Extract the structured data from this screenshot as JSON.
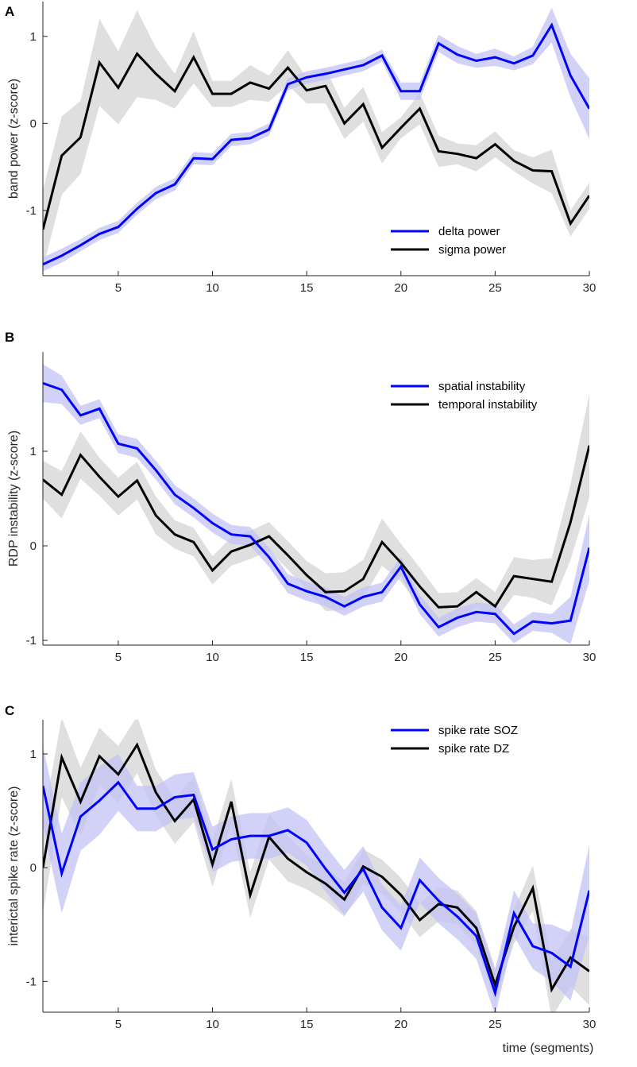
{
  "chart_data": [
    {
      "panel_label": "A",
      "type": "line",
      "title": "",
      "xlabel": "",
      "ylabel": "band power (z-score)",
      "xlim": [
        1,
        30
      ],
      "ylim": [
        -1.75,
        1.4
      ],
      "xticks": [
        5,
        10,
        15,
        20,
        25,
        30
      ],
      "yticks": [
        -1,
        0,
        1
      ],
      "grid": false,
      "legend_position": "bottom-right",
      "series": [
        {
          "name": "delta power",
          "color": "#0000ff",
          "band_color": "#c3c3f5",
          "x": [
            1,
            2,
            3,
            4,
            5,
            6,
            7,
            8,
            9,
            10,
            11,
            12,
            13,
            14,
            15,
            16,
            17,
            18,
            19,
            20,
            21,
            22,
            23,
            24,
            25,
            26,
            27,
            28,
            29,
            30
          ],
          "values": [
            -1.62,
            -1.52,
            -1.4,
            -1.27,
            -1.19,
            -0.98,
            -0.8,
            -0.7,
            -0.4,
            -0.41,
            -0.19,
            -0.17,
            -0.07,
            0.45,
            0.53,
            0.57,
            0.62,
            0.67,
            0.78,
            0.37,
            0.37,
            0.92,
            0.79,
            0.72,
            0.76,
            0.69,
            0.78,
            1.13,
            0.55,
            0.17
          ],
          "band": [
            0.08,
            0.08,
            0.07,
            0.07,
            0.07,
            0.07,
            0.07,
            0.07,
            0.07,
            0.07,
            0.07,
            0.07,
            0.07,
            0.07,
            0.07,
            0.07,
            0.07,
            0.07,
            0.07,
            0.1,
            0.1,
            0.1,
            0.1,
            0.08,
            0.1,
            0.08,
            0.1,
            0.2,
            0.25,
            0.35
          ]
        },
        {
          "name": "sigma power",
          "color": "#000000",
          "band_color": "#d9d9d9",
          "x": [
            1,
            2,
            3,
            4,
            5,
            6,
            7,
            8,
            9,
            10,
            11,
            12,
            13,
            14,
            15,
            16,
            17,
            18,
            19,
            20,
            21,
            22,
            23,
            24,
            25,
            26,
            27,
            28,
            29,
            30
          ],
          "values": [
            -1.22,
            -0.37,
            -0.16,
            0.7,
            0.41,
            0.8,
            0.57,
            0.37,
            0.76,
            0.34,
            0.34,
            0.47,
            0.4,
            0.64,
            0.38,
            0.43,
            0.0,
            0.22,
            -0.28,
            -0.05,
            0.17,
            -0.32,
            -0.35,
            -0.4,
            -0.24,
            -0.43,
            -0.54,
            -0.55,
            -1.15,
            -0.83
          ],
          "band": [
            0.45,
            0.45,
            0.42,
            0.5,
            0.42,
            0.5,
            0.3,
            0.2,
            0.3,
            0.15,
            0.15,
            0.2,
            0.15,
            0.2,
            0.15,
            0.2,
            0.18,
            0.2,
            0.18,
            0.12,
            0.18,
            0.18,
            0.12,
            0.15,
            0.15,
            0.12,
            0.15,
            0.25,
            0.15,
            0.15
          ]
        }
      ]
    },
    {
      "panel_label": "B",
      "type": "line",
      "title": "",
      "xlabel": "",
      "ylabel": "RDP instability (z-score)",
      "xlim": [
        1,
        30
      ],
      "ylim": [
        -1.05,
        2.05
      ],
      "xticks": [
        5,
        10,
        15,
        20,
        25,
        30
      ],
      "yticks": [
        -1,
        0,
        1
      ],
      "grid": false,
      "legend_position": "top-right",
      "series": [
        {
          "name": "spatial instability",
          "color": "#0000ff",
          "band_color": "#c3c3f5",
          "x": [
            1,
            2,
            3,
            4,
            5,
            6,
            7,
            8,
            9,
            10,
            11,
            12,
            13,
            14,
            15,
            16,
            17,
            18,
            19,
            20,
            21,
            22,
            23,
            24,
            25,
            26,
            27,
            28,
            29,
            30
          ],
          "values": [
            1.72,
            1.65,
            1.38,
            1.45,
            1.08,
            1.03,
            0.8,
            0.54,
            0.4,
            0.24,
            0.12,
            0.1,
            -0.12,
            -0.4,
            -0.48,
            -0.54,
            -0.64,
            -0.54,
            -0.49,
            -0.22,
            -0.62,
            -0.86,
            -0.76,
            -0.7,
            -0.72,
            -0.93,
            -0.8,
            -0.82,
            -0.79,
            -0.02
          ],
          "band": [
            0.2,
            0.15,
            0.1,
            0.1,
            0.1,
            0.1,
            0.1,
            0.1,
            0.1,
            0.1,
            0.1,
            0.1,
            0.1,
            0.1,
            0.1,
            0.1,
            0.1,
            0.1,
            0.1,
            0.1,
            0.1,
            0.1,
            0.1,
            0.1,
            0.1,
            0.1,
            0.1,
            0.1,
            0.25,
            0.35
          ]
        },
        {
          "name": "temporal instability",
          "color": "#000000",
          "band_color": "#d9d9d9",
          "x": [
            1,
            2,
            3,
            4,
            5,
            6,
            7,
            8,
            9,
            10,
            11,
            12,
            13,
            14,
            15,
            16,
            17,
            18,
            19,
            20,
            21,
            22,
            23,
            24,
            25,
            26,
            27,
            28,
            29,
            30
          ],
          "values": [
            0.7,
            0.54,
            0.96,
            0.73,
            0.52,
            0.69,
            0.32,
            0.12,
            0.04,
            -0.26,
            -0.06,
            0.01,
            0.1,
            -0.1,
            -0.31,
            -0.49,
            -0.48,
            -0.35,
            0.04,
            -0.18,
            -0.43,
            -0.65,
            -0.64,
            -0.49,
            -0.64,
            -0.32,
            -0.35,
            -0.38,
            0.25,
            1.06
          ],
          "band": [
            0.2,
            0.25,
            0.25,
            0.2,
            0.2,
            0.2,
            0.2,
            0.15,
            0.15,
            0.15,
            0.15,
            0.15,
            0.15,
            0.15,
            0.15,
            0.2,
            0.2,
            0.2,
            0.25,
            0.2,
            0.2,
            0.15,
            0.15,
            0.15,
            0.15,
            0.2,
            0.2,
            0.25,
            0.4,
            0.55
          ]
        }
      ]
    },
    {
      "panel_label": "C",
      "type": "line",
      "title": "",
      "xlabel": "time (segments)",
      "ylabel": "interictal spike rate (z-score)",
      "xlim": [
        1,
        30
      ],
      "ylim": [
        -1.27,
        1.3
      ],
      "xticks": [
        5,
        10,
        15,
        20,
        25,
        30
      ],
      "yticks": [
        -1,
        0,
        1
      ],
      "grid": false,
      "legend_position": "top-right",
      "series": [
        {
          "name": "spike rate SOZ",
          "color": "#0000ff",
          "band_color": "#c3c3f5",
          "x": [
            1,
            2,
            3,
            4,
            5,
            6,
            7,
            8,
            9,
            10,
            11,
            12,
            13,
            14,
            15,
            16,
            17,
            18,
            19,
            20,
            21,
            22,
            23,
            24,
            25,
            26,
            27,
            28,
            29,
            30
          ],
          "values": [
            0.72,
            -0.05,
            0.45,
            0.59,
            0.75,
            0.52,
            0.52,
            0.62,
            0.64,
            0.16,
            0.25,
            0.28,
            0.28,
            0.33,
            0.22,
            -0.01,
            -0.22,
            -0.01,
            -0.35,
            -0.53,
            -0.11,
            -0.29,
            -0.43,
            -0.6,
            -1.1,
            -0.4,
            -0.69,
            -0.75,
            -0.87,
            -0.2
          ],
          "band": [
            0.35,
            0.35,
            0.3,
            0.3,
            0.25,
            0.2,
            0.2,
            0.2,
            0.2,
            0.2,
            0.2,
            0.2,
            0.2,
            0.2,
            0.2,
            0.2,
            0.2,
            0.2,
            0.2,
            0.2,
            0.2,
            0.2,
            0.2,
            0.2,
            0.2,
            0.2,
            0.2,
            0.25,
            0.3,
            0.4
          ]
        },
        {
          "name": "spike rate DZ",
          "color": "#000000",
          "band_color": "#d9d9d9",
          "x": [
            1,
            2,
            3,
            4,
            5,
            6,
            7,
            8,
            9,
            10,
            11,
            12,
            13,
            14,
            15,
            16,
            17,
            18,
            19,
            20,
            21,
            22,
            23,
            24,
            25,
            26,
            27,
            28,
            29,
            30
          ],
          "values": [
            0.0,
            0.97,
            0.58,
            0.98,
            0.82,
            1.08,
            0.66,
            0.41,
            0.6,
            0.03,
            0.58,
            -0.24,
            0.27,
            0.08,
            -0.04,
            -0.14,
            -0.28,
            0.01,
            -0.08,
            -0.24,
            -0.46,
            -0.32,
            -0.35,
            -0.53,
            -1.03,
            -0.52,
            -0.18,
            -1.07,
            -0.79,
            -0.91
          ],
          "band": [
            0.4,
            0.35,
            0.3,
            0.25,
            0.25,
            0.25,
            0.2,
            0.2,
            0.2,
            0.2,
            0.2,
            0.2,
            0.2,
            0.2,
            0.15,
            0.15,
            0.15,
            0.15,
            0.15,
            0.15,
            0.15,
            0.15,
            0.15,
            0.15,
            0.15,
            0.15,
            0.2,
            0.25,
            0.25,
            0.3
          ]
        }
      ]
    }
  ]
}
